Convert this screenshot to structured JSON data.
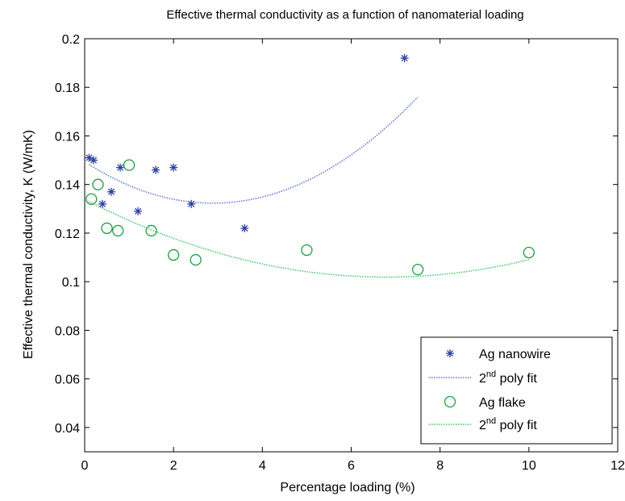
{
  "chart_data": {
    "type": "scatter",
    "title": "Effective thermal conductivity as a function of nanomaterial  loading",
    "xlabel": "Percentage loading (%)",
    "ylabel": "Effective thermal conductivity, K (W/mK)",
    "xlim": [
      0,
      12
    ],
    "ylim": [
      0.03,
      0.2
    ],
    "xticks": [
      0,
      2,
      4,
      6,
      8,
      10,
      12
    ],
    "yticks": [
      0.04,
      0.06,
      0.08,
      0.1,
      0.12,
      0.14,
      0.16,
      0.18,
      0.2
    ],
    "xtick_labels": [
      "0",
      "2",
      "4",
      "6",
      "8",
      "10",
      "12"
    ],
    "ytick_labels": [
      "0.04",
      "0.06",
      "0.08",
      "0.1",
      "0.12",
      "0.14",
      "0.16",
      "0.18",
      "0.2"
    ],
    "grid": false,
    "legend_position": "bottom-right",
    "series": [
      {
        "name": "Ag nanowire",
        "kind": "scatter",
        "marker": "asterisk",
        "color": "#2b3fa8",
        "x": [
          0.1,
          0.2,
          0.4,
          0.6,
          0.8,
          1.2,
          1.6,
          2.0,
          2.4,
          3.6,
          7.2
        ],
        "y": [
          0.151,
          0.15,
          0.132,
          0.137,
          0.147,
          0.129,
          0.146,
          0.147,
          0.132,
          0.122,
          0.192
        ]
      },
      {
        "name": "2nd poly fit",
        "kind": "line",
        "style": "dotted",
        "color": "#5b74d6",
        "x": [
          0.1,
          1.0,
          2.0,
          3.0,
          4.0,
          5.0,
          6.0,
          7.0,
          7.5
        ],
        "y": [
          0.148,
          0.14,
          0.1338,
          0.1323,
          0.1349,
          0.1415,
          0.1522,
          0.1669,
          0.1761
        ]
      },
      {
        "name": "Ag flake",
        "kind": "scatter",
        "marker": "circle",
        "color": "#1aa040",
        "x": [
          0.15,
          0.3,
          0.5,
          0.75,
          1.0,
          1.5,
          2.0,
          2.5,
          5.0,
          7.5,
          10.0
        ],
        "y": [
          0.134,
          0.14,
          0.122,
          0.121,
          0.148,
          0.121,
          0.111,
          0.109,
          0.113,
          0.105,
          0.112
        ]
      },
      {
        "name": "2nd poly fit",
        "kind": "line",
        "style": "dotted",
        "color": "#3fc86a",
        "x": [
          0.1,
          1.0,
          2.0,
          3.0,
          4.0,
          5.0,
          6.0,
          7.0,
          8.0,
          9.0,
          10.0
        ],
        "y": [
          0.1329,
          0.1253,
          0.1179,
          0.1119,
          0.1073,
          0.1041,
          0.1023,
          0.1019,
          0.1029,
          0.1053,
          0.1091
        ]
      }
    ],
    "legend": [
      {
        "label": "Ag nanowire",
        "sup": "",
        "rest": ""
      },
      {
        "label": "2",
        "sup": "nd",
        "rest": " poly fit"
      },
      {
        "label": "Ag flake",
        "sup": "",
        "rest": ""
      },
      {
        "label": "2",
        "sup": "nd",
        "rest": " poly fit"
      }
    ]
  }
}
